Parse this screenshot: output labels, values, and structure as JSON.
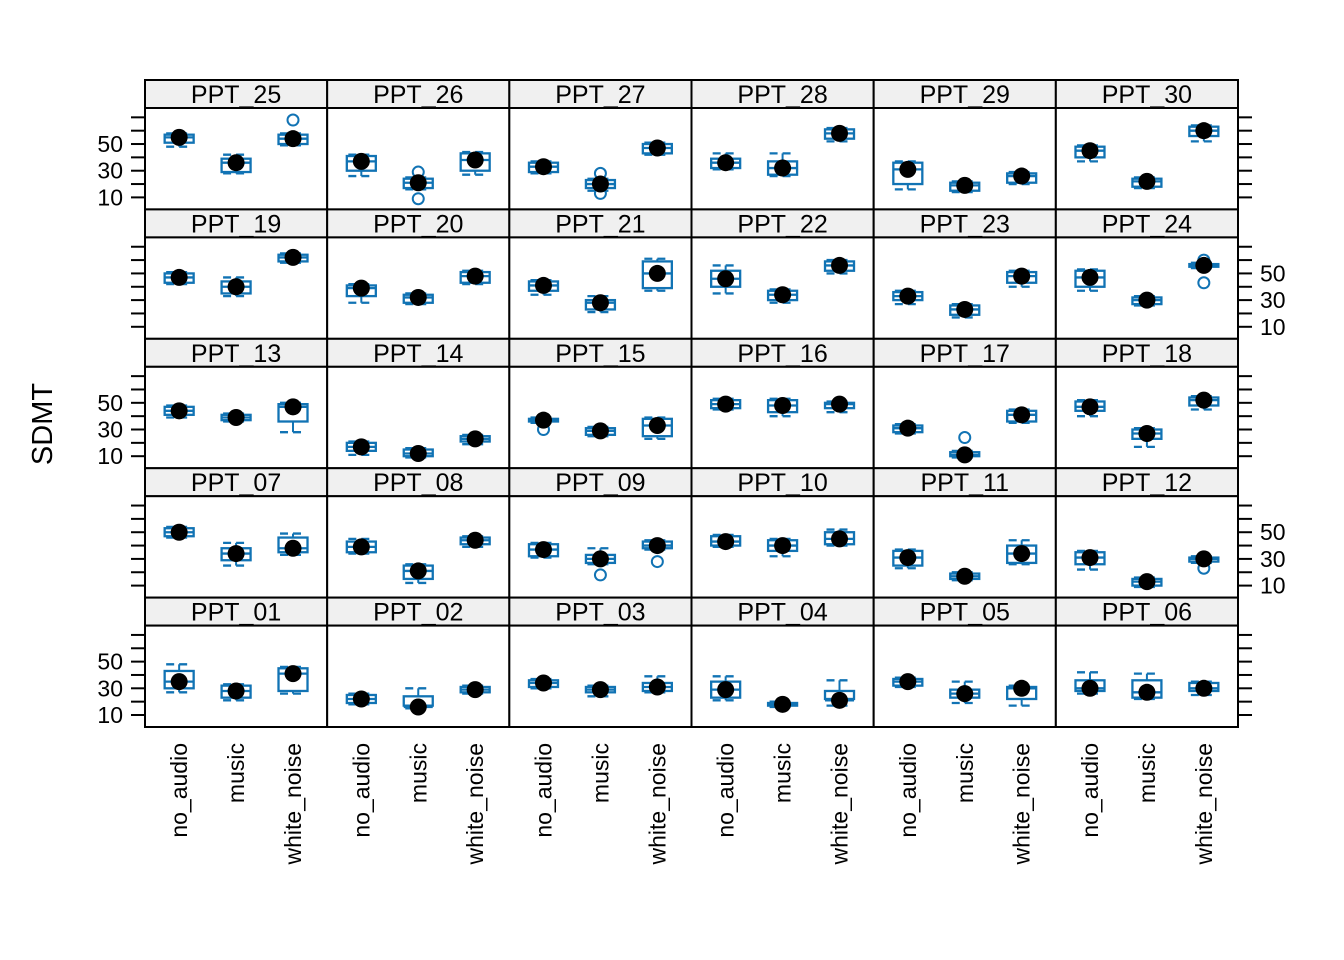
{
  "chart_data": {
    "type": "box",
    "title": "",
    "ylabel": "SDMT",
    "xlabel": "",
    "categories": [
      "no_audio",
      "music",
      "white_noise"
    ],
    "ylim": [
      1,
      77
    ],
    "yticks": [
      10,
      20,
      30,
      40,
      50,
      60,
      70
    ],
    "labeled_yticks": [
      10,
      30,
      50
    ],
    "ytick_label_sides_by_row": [
      "left",
      "right",
      "left",
      "right",
      "left"
    ],
    "legend": "none",
    "grid_lines": "off",
    "marker_legend": {
      "filled_black_dot": "mean score",
      "open_circle": "outlier",
      "blue_box": "interquartile range with dashed whisker caps"
    },
    "colors": {
      "box": "#1173B4",
      "mean_dot": "#000000",
      "outlier": "#1173B4",
      "strip_bg": "#F0F0F0",
      "panel_border": "#000000",
      "background": "#FFFFFF"
    },
    "grid": [
      [
        "PPT_25",
        "PPT_26",
        "PPT_27",
        "PPT_28",
        "PPT_29",
        "PPT_30"
      ],
      [
        "PPT_19",
        "PPT_20",
        "PPT_21",
        "PPT_22",
        "PPT_23",
        "PPT_24"
      ],
      [
        "PPT_13",
        "PPT_14",
        "PPT_15",
        "PPT_16",
        "PPT_17",
        "PPT_18"
      ],
      [
        "PPT_07",
        "PPT_08",
        "PPT_09",
        "PPT_10",
        "PPT_11",
        "PPT_12"
      ],
      [
        "PPT_01",
        "PPT_02",
        "PPT_03",
        "PPT_04",
        "PPT_05",
        "PPT_06"
      ]
    ],
    "panels": {
      "PPT_01": {
        "values": [
          {
            "mean": 35,
            "q1": 30,
            "q3": 43,
            "lo": 27,
            "hi": 48,
            "out": []
          },
          {
            "mean": 28,
            "q1": 23,
            "q3": 32,
            "lo": 21,
            "hi": 33,
            "out": []
          },
          {
            "mean": 41,
            "q1": 28,
            "q3": 45,
            "lo": 26,
            "hi": 46,
            "out": []
          }
        ]
      },
      "PPT_02": {
        "values": [
          {
            "mean": 22,
            "q1": 19,
            "q3": 25,
            "lo": 18,
            "hi": 26,
            "out": []
          },
          {
            "mean": 16,
            "q1": 17,
            "q3": 24,
            "lo": 15,
            "hi": 30,
            "out": []
          },
          {
            "mean": 29,
            "q1": 27,
            "q3": 31,
            "lo": 26,
            "hi": 32,
            "out": []
          }
        ]
      },
      "PPT_03": {
        "values": [
          {
            "mean": 34,
            "q1": 31,
            "q3": 36,
            "lo": 30,
            "hi": 37,
            "out": []
          },
          {
            "mean": 29,
            "q1": 27,
            "q3": 31,
            "lo": 24,
            "hi": 32,
            "out": []
          },
          {
            "mean": 31,
            "q1": 28,
            "q3": 34,
            "lo": 27,
            "hi": 39,
            "out": []
          }
        ]
      },
      "PPT_04": {
        "values": [
          {
            "mean": 29,
            "q1": 23,
            "q3": 35,
            "lo": 21,
            "hi": 39,
            "out": []
          },
          {
            "mean": 18,
            "q1": 17,
            "q3": 19,
            "lo": 16,
            "hi": 20,
            "out": []
          },
          {
            "mean": 21,
            "q1": 22,
            "q3": 28,
            "lo": 17,
            "hi": 36,
            "out": []
          }
        ]
      },
      "PPT_05": {
        "values": [
          {
            "mean": 35,
            "q1": 32,
            "q3": 37,
            "lo": 31,
            "hi": 38,
            "out": []
          },
          {
            "mean": 26,
            "q1": 23,
            "q3": 29,
            "lo": 19,
            "hi": 35,
            "out": []
          },
          {
            "mean": 30,
            "q1": 22,
            "q3": 31,
            "lo": 17,
            "hi": 32,
            "out": []
          }
        ]
      },
      "PPT_06": {
        "values": [
          {
            "mean": 30,
            "q1": 28,
            "q3": 36,
            "lo": 26,
            "hi": 42,
            "out": []
          },
          {
            "mean": 27,
            "q1": 23,
            "q3": 36,
            "lo": 22,
            "hi": 41,
            "out": []
          },
          {
            "mean": 30,
            "q1": 28,
            "q3": 34,
            "lo": 25,
            "hi": 35,
            "out": []
          }
        ]
      },
      "PPT_07": {
        "values": [
          {
            "mean": 50,
            "q1": 47,
            "q3": 53,
            "lo": 46,
            "hi": 54,
            "out": []
          },
          {
            "mean": 34,
            "q1": 29,
            "q3": 38,
            "lo": 25,
            "hi": 42,
            "out": []
          },
          {
            "mean": 38,
            "q1": 35,
            "q3": 46,
            "lo": 33,
            "hi": 49,
            "out": []
          }
        ]
      },
      "PPT_08": {
        "values": [
          {
            "mean": 39,
            "q1": 35,
            "q3": 43,
            "lo": 34,
            "hi": 45,
            "out": []
          },
          {
            "mean": 21,
            "q1": 15,
            "q3": 25,
            "lo": 12,
            "hi": 26,
            "out": []
          },
          {
            "mean": 44,
            "q1": 41,
            "q3": 46,
            "lo": 39,
            "hi": 47,
            "out": []
          }
        ]
      },
      "PPT_09": {
        "values": [
          {
            "mean": 37,
            "q1": 32,
            "q3": 41,
            "lo": 31,
            "hi": 42,
            "out": []
          },
          {
            "mean": 30,
            "q1": 27,
            "q3": 33,
            "lo": 26,
            "hi": 38,
            "out": [
              18
            ]
          },
          {
            "mean": 40,
            "q1": 38,
            "q3": 43,
            "lo": 37,
            "hi": 44,
            "out": [
              28
            ]
          }
        ]
      },
      "PPT_10": {
        "values": [
          {
            "mean": 43,
            "q1": 40,
            "q3": 47,
            "lo": 39,
            "hi": 48,
            "out": []
          },
          {
            "mean": 40,
            "q1": 36,
            "q3": 44,
            "lo": 32,
            "hi": 45,
            "out": []
          },
          {
            "mean": 45,
            "q1": 41,
            "q3": 50,
            "lo": 40,
            "hi": 52,
            "out": []
          }
        ]
      },
      "PPT_11": {
        "values": [
          {
            "mean": 31,
            "q1": 25,
            "q3": 36,
            "lo": 23,
            "hi": 37,
            "out": []
          },
          {
            "mean": 17,
            "q1": 15,
            "q3": 19,
            "lo": 14,
            "hi": 20,
            "out": []
          },
          {
            "mean": 34,
            "q1": 27,
            "q3": 40,
            "lo": 26,
            "hi": 44,
            "out": []
          }
        ]
      },
      "PPT_12": {
        "values": [
          {
            "mean": 31,
            "q1": 26,
            "q3": 35,
            "lo": 22,
            "hi": 36,
            "out": []
          },
          {
            "mean": 13,
            "q1": 10,
            "q3": 15,
            "lo": 9,
            "hi": 16,
            "out": []
          },
          {
            "mean": 30,
            "q1": 28,
            "q3": 31,
            "lo": 27,
            "hi": 32,
            "out": [
              23
            ]
          }
        ]
      },
      "PPT_13": {
        "values": [
          {
            "mean": 44,
            "q1": 41,
            "q3": 47,
            "lo": 39,
            "hi": 48,
            "out": []
          },
          {
            "mean": 39,
            "q1": 37,
            "q3": 41,
            "lo": 36,
            "hi": 42,
            "out": []
          },
          {
            "mean": 47,
            "q1": 36,
            "q3": 49,
            "lo": 28,
            "hi": 50,
            "out": []
          }
        ]
      },
      "PPT_14": {
        "values": [
          {
            "mean": 17,
            "q1": 14,
            "q3": 20,
            "lo": 11,
            "hi": 21,
            "out": []
          },
          {
            "mean": 12,
            "q1": 10,
            "q3": 15,
            "lo": 9,
            "hi": 16,
            "out": []
          },
          {
            "mean": 23,
            "q1": 21,
            "q3": 25,
            "lo": 19,
            "hi": 26,
            "out": []
          }
        ]
      },
      "PPT_15": {
        "values": [
          {
            "mean": 37,
            "q1": 36,
            "q3": 38,
            "lo": 35,
            "hi": 39,
            "out": [
              30
            ]
          },
          {
            "mean": 29,
            "q1": 26,
            "q3": 31,
            "lo": 25,
            "hi": 32,
            "out": []
          },
          {
            "mean": 33,
            "q1": 25,
            "q3": 38,
            "lo": 23,
            "hi": 39,
            "out": []
          }
        ]
      },
      "PPT_16": {
        "values": [
          {
            "mean": 49,
            "q1": 46,
            "q3": 52,
            "lo": 45,
            "hi": 53,
            "out": []
          },
          {
            "mean": 48,
            "q1": 43,
            "q3": 52,
            "lo": 40,
            "hi": 53,
            "out": []
          },
          {
            "mean": 49,
            "q1": 46,
            "q3": 50,
            "lo": 43,
            "hi": 51,
            "out": []
          }
        ]
      },
      "PPT_17": {
        "values": [
          {
            "mean": 31,
            "q1": 28,
            "q3": 33,
            "lo": 27,
            "hi": 34,
            "out": []
          },
          {
            "mean": 11,
            "q1": 10,
            "q3": 13,
            "lo": 9,
            "hi": 14,
            "out": [
              24
            ]
          },
          {
            "mean": 41,
            "q1": 36,
            "q3": 44,
            "lo": 35,
            "hi": 45,
            "out": []
          }
        ]
      },
      "PPT_18": {
        "values": [
          {
            "mean": 47,
            "q1": 44,
            "q3": 51,
            "lo": 40,
            "hi": 52,
            "out": []
          },
          {
            "mean": 27,
            "q1": 23,
            "q3": 30,
            "lo": 17,
            "hi": 31,
            "out": []
          },
          {
            "mean": 52,
            "q1": 48,
            "q3": 54,
            "lo": 45,
            "hi": 55,
            "out": []
          }
        ]
      },
      "PPT_19": {
        "values": [
          {
            "mean": 47,
            "q1": 43,
            "q3": 50,
            "lo": 42,
            "hi": 51,
            "out": []
          },
          {
            "mean": 40,
            "q1": 35,
            "q3": 44,
            "lo": 33,
            "hi": 47,
            "out": []
          },
          {
            "mean": 62,
            "q1": 59,
            "q3": 64,
            "lo": 58,
            "hi": 65,
            "out": []
          }
        ]
      },
      "PPT_20": {
        "values": [
          {
            "mean": 39,
            "q1": 33,
            "q3": 41,
            "lo": 28,
            "hi": 42,
            "out": []
          },
          {
            "mean": 32,
            "q1": 28,
            "q3": 34,
            "lo": 27,
            "hi": 35,
            "out": []
          },
          {
            "mean": 48,
            "q1": 43,
            "q3": 51,
            "lo": 42,
            "hi": 52,
            "out": []
          }
        ]
      },
      "PPT_21": {
        "values": [
          {
            "mean": 41,
            "q1": 37,
            "q3": 44,
            "lo": 34,
            "hi": 45,
            "out": []
          },
          {
            "mean": 28,
            "q1": 23,
            "q3": 30,
            "lo": 21,
            "hi": 33,
            "out": []
          },
          {
            "mean": 50,
            "q1": 39,
            "q3": 59,
            "lo": 37,
            "hi": 61,
            "out": []
          }
        ]
      },
      "PPT_22": {
        "values": [
          {
            "mean": 46,
            "q1": 40,
            "q3": 52,
            "lo": 35,
            "hi": 56,
            "out": []
          },
          {
            "mean": 34,
            "q1": 30,
            "q3": 37,
            "lo": 28,
            "hi": 38,
            "out": []
          },
          {
            "mean": 56,
            "q1": 52,
            "q3": 59,
            "lo": 50,
            "hi": 60,
            "out": []
          }
        ]
      },
      "PPT_23": {
        "values": [
          {
            "mean": 33,
            "q1": 30,
            "q3": 36,
            "lo": 27,
            "hi": 37,
            "out": []
          },
          {
            "mean": 23,
            "q1": 19,
            "q3": 26,
            "lo": 17,
            "hi": 27,
            "out": []
          },
          {
            "mean": 48,
            "q1": 43,
            "q3": 51,
            "lo": 40,
            "hi": 52,
            "out": []
          }
        ]
      },
      "PPT_24": {
        "values": [
          {
            "mean": 47,
            "q1": 40,
            "q3": 52,
            "lo": 37,
            "hi": 53,
            "out": []
          },
          {
            "mean": 30,
            "q1": 27,
            "q3": 32,
            "lo": 26,
            "hi": 33,
            "out": []
          },
          {
            "mean": 56,
            "q1": 55,
            "q3": 57,
            "lo": 54,
            "hi": 58,
            "out": [
              60,
              43
            ]
          }
        ]
      },
      "PPT_25": {
        "values": [
          {
            "mean": 55,
            "q1": 51,
            "q3": 57,
            "lo": 48,
            "hi": 58,
            "out": []
          },
          {
            "mean": 36,
            "q1": 29,
            "q3": 39,
            "lo": 28,
            "hi": 42,
            "out": []
          },
          {
            "mean": 54,
            "q1": 50,
            "q3": 57,
            "lo": 49,
            "hi": 58,
            "out": [
              68
            ]
          }
        ]
      },
      "PPT_26": {
        "values": [
          {
            "mean": 37,
            "q1": 30,
            "q3": 41,
            "lo": 26,
            "hi": 42,
            "out": []
          },
          {
            "mean": 21,
            "q1": 17,
            "q3": 24,
            "lo": 16,
            "hi": 25,
            "out": [
              29,
              9
            ]
          },
          {
            "mean": 38,
            "q1": 30,
            "q3": 43,
            "lo": 27,
            "hi": 44,
            "out": []
          }
        ]
      },
      "PPT_27": {
        "values": [
          {
            "mean": 33,
            "q1": 29,
            "q3": 36,
            "lo": 28,
            "hi": 37,
            "out": []
          },
          {
            "mean": 20,
            "q1": 17,
            "q3": 23,
            "lo": 15,
            "hi": 24,
            "out": [
              28,
              13
            ]
          },
          {
            "mean": 47,
            "q1": 43,
            "q3": 50,
            "lo": 42,
            "hi": 51,
            "out": []
          }
        ]
      },
      "PPT_28": {
        "values": [
          {
            "mean": 36,
            "q1": 32,
            "q3": 39,
            "lo": 31,
            "hi": 43,
            "out": []
          },
          {
            "mean": 32,
            "q1": 27,
            "q3": 37,
            "lo": 26,
            "hi": 43,
            "out": []
          },
          {
            "mean": 58,
            "q1": 54,
            "q3": 61,
            "lo": 52,
            "hi": 62,
            "out": []
          }
        ]
      },
      "PPT_29": {
        "values": [
          {
            "mean": 31,
            "q1": 20,
            "q3": 36,
            "lo": 16,
            "hi": 37,
            "out": []
          },
          {
            "mean": 19,
            "q1": 15,
            "q3": 21,
            "lo": 14,
            "hi": 22,
            "out": []
          },
          {
            "mean": 26,
            "q1": 21,
            "q3": 28,
            "lo": 20,
            "hi": 29,
            "out": []
          }
        ]
      },
      "PPT_30": {
        "values": [
          {
            "mean": 45,
            "q1": 40,
            "q3": 48,
            "lo": 37,
            "hi": 49,
            "out": []
          },
          {
            "mean": 22,
            "q1": 18,
            "q3": 24,
            "lo": 17,
            "hi": 25,
            "out": []
          },
          {
            "mean": 60,
            "q1": 56,
            "q3": 63,
            "lo": 52,
            "hi": 64,
            "out": []
          }
        ]
      }
    }
  }
}
